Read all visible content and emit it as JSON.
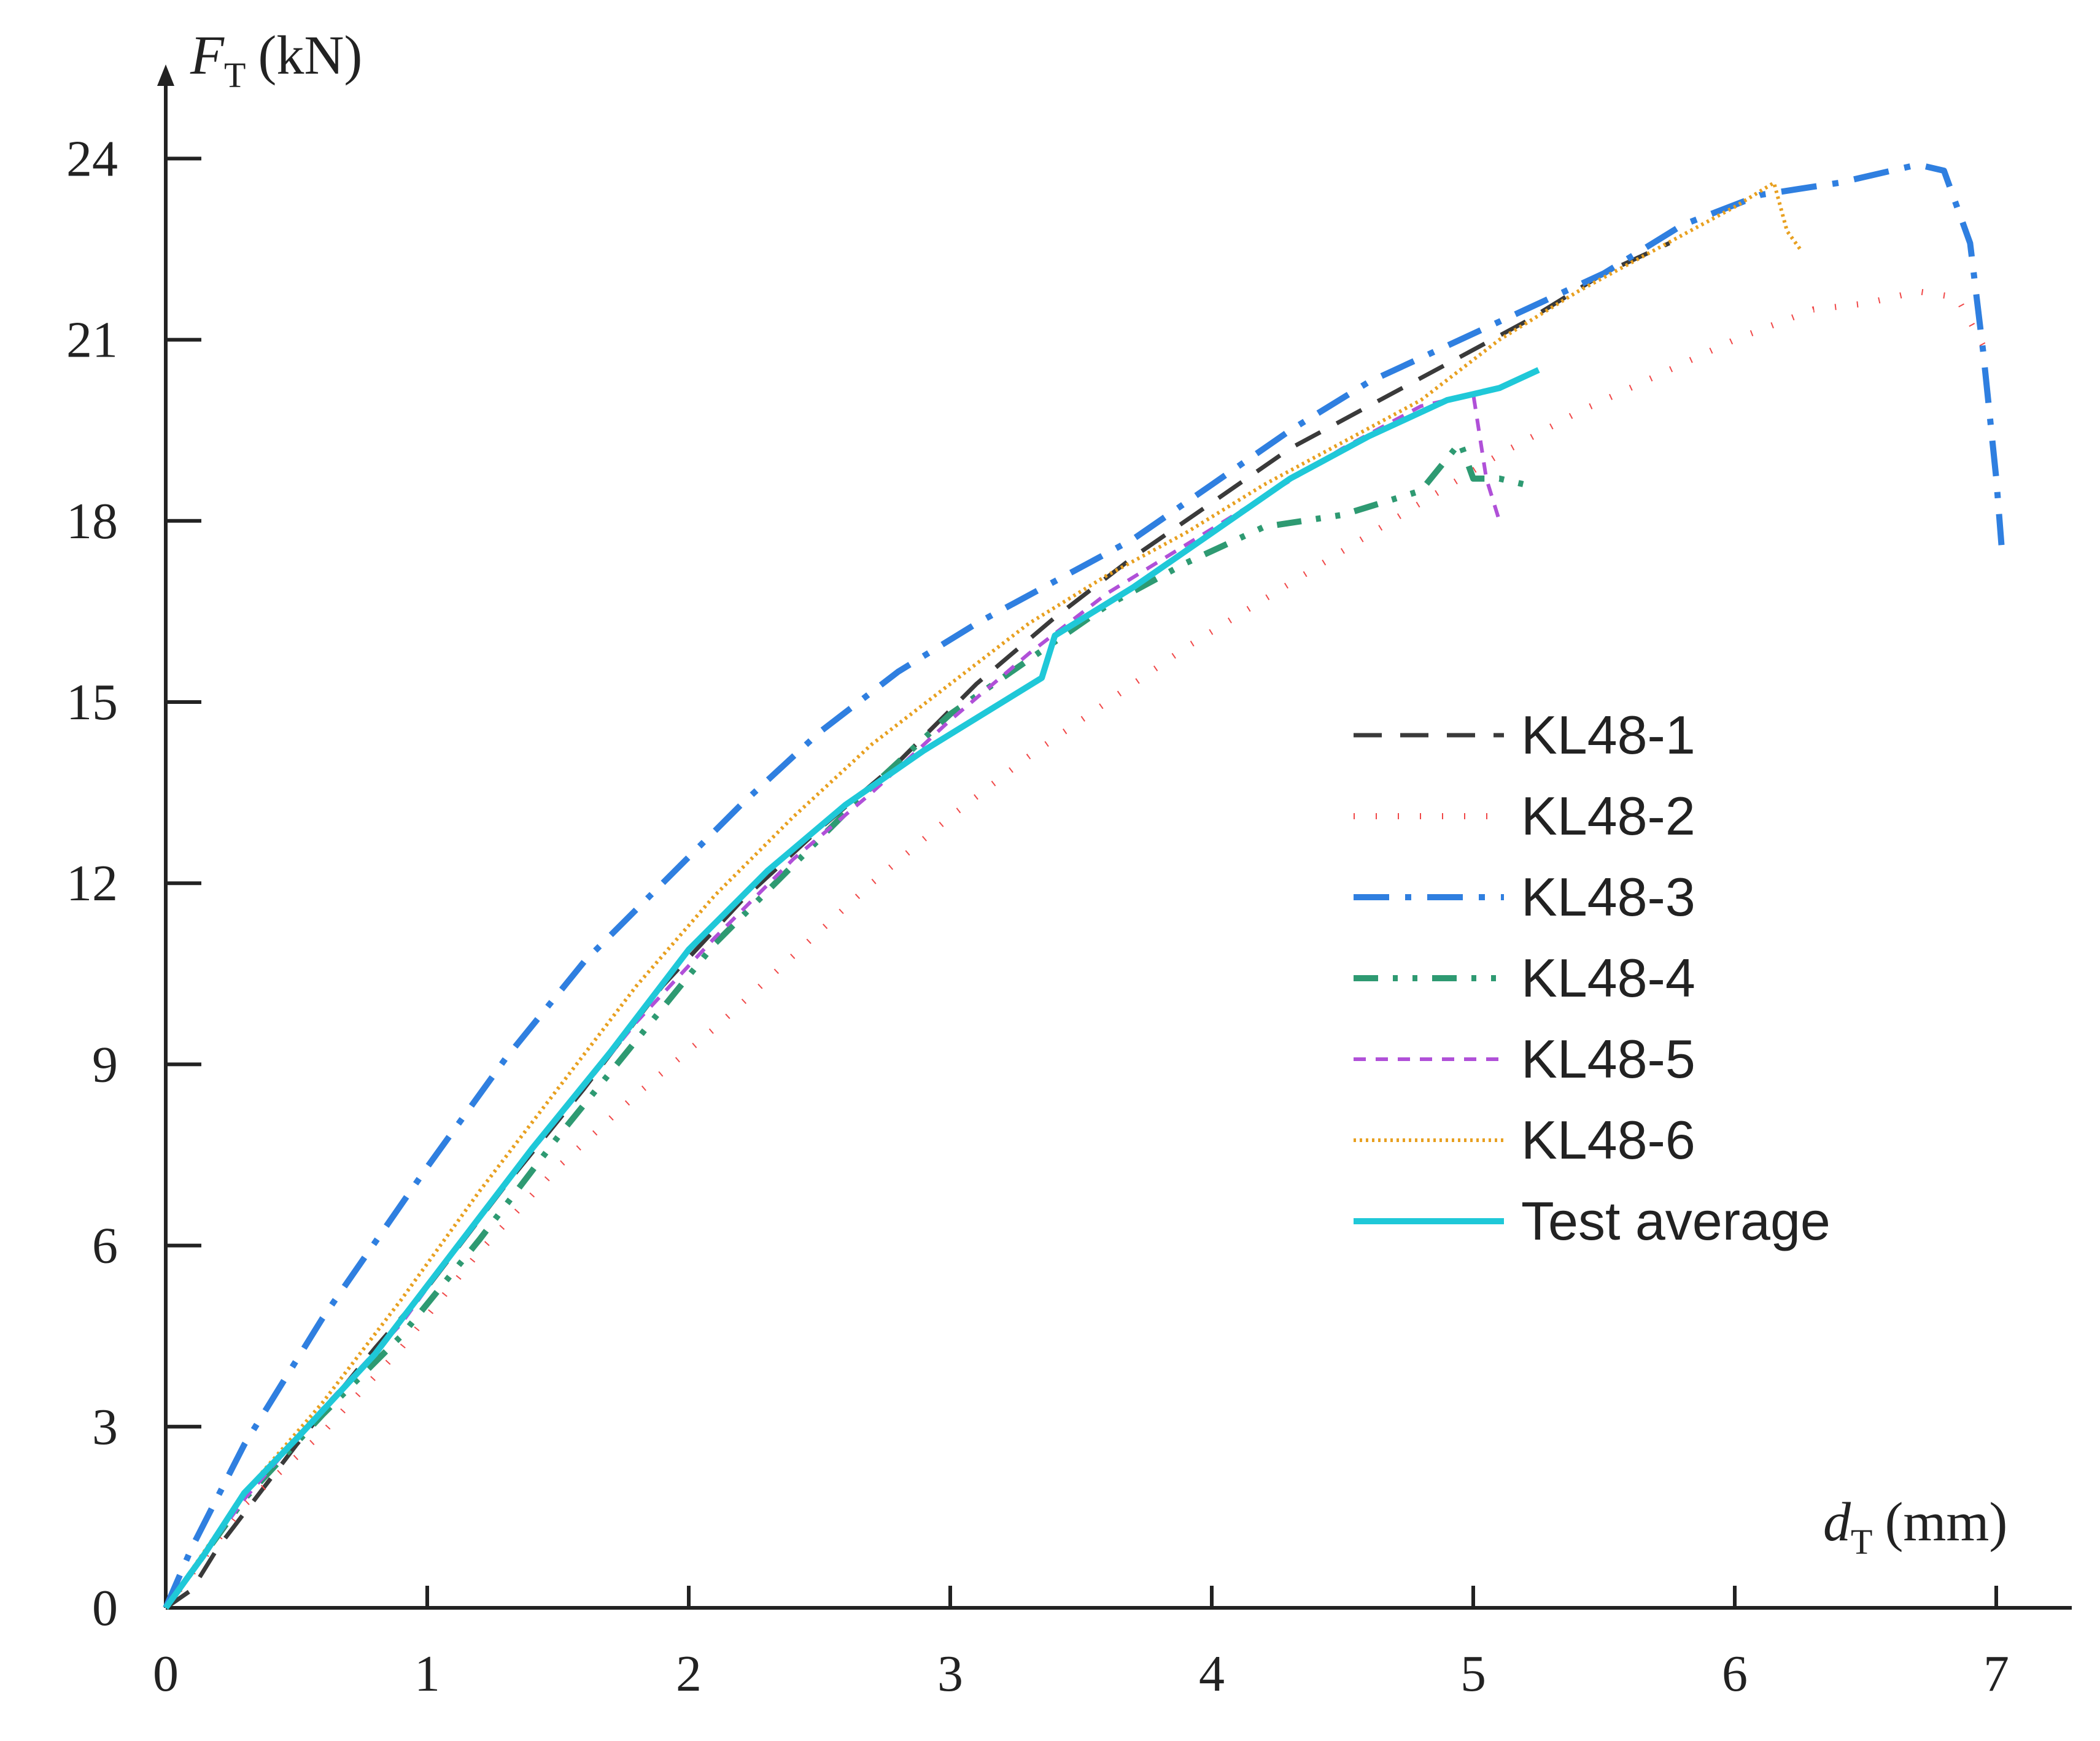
{
  "chart_data": {
    "type": "line",
    "xlabel": {
      "symbol": "d",
      "subscript": "T",
      "unit": "(mm)"
    },
    "ylabel": {
      "symbol": "F",
      "subscript": "T",
      "unit": "(kN)"
    },
    "xlim": [
      0,
      7.3
    ],
    "ylim": [
      0,
      25.5
    ],
    "xticks": [
      0,
      1,
      2,
      3,
      4,
      5,
      6,
      7
    ],
    "yticks": [
      0,
      3,
      6,
      9,
      12,
      15,
      18,
      21,
      24
    ],
    "legend_position": "right",
    "series": [
      {
        "name": "KL48-1",
        "color": "#3a3a3a",
        "style": "dash",
        "x": [
          0,
          0.1,
          0.2,
          0.5,
          0.8,
          1.0,
          1.3,
          1.6,
          1.9,
          2.2,
          2.5,
          2.8,
          3.1,
          3.4,
          3.7,
          4.0,
          4.3,
          4.6,
          4.9,
          5.2,
          5.5,
          5.75
        ],
        "y": [
          0,
          0.3,
          1.0,
          2.7,
          4.3,
          5.3,
          7.0,
          8.6,
          10.3,
          11.7,
          12.9,
          14.0,
          15.3,
          16.4,
          17.4,
          18.3,
          19.2,
          19.9,
          20.6,
          21.3,
          22.1,
          22.6
        ]
      },
      {
        "name": "KL48-2",
        "color": "#f04848",
        "style": "dot",
        "x": [
          0,
          0.3,
          0.6,
          0.9,
          1.2,
          1.5,
          1.8,
          2.1,
          2.4,
          2.7,
          3.0,
          3.3,
          3.6,
          3.9,
          4.2,
          4.5,
          4.8,
          5.1,
          5.4,
          5.7,
          6.0,
          6.3,
          6.5,
          6.7,
          6.85,
          6.95
        ],
        "y": [
          0,
          1.7,
          2.9,
          4.3,
          5.9,
          7.3,
          8.5,
          9.6,
          10.8,
          12.0,
          13.1,
          14.1,
          15.0,
          15.9,
          16.7,
          17.5,
          18.3,
          19.1,
          19.8,
          20.4,
          21.0,
          21.5,
          21.6,
          21.8,
          21.7,
          20.9
        ]
      },
      {
        "name": "KL48-3",
        "color": "#2f7fe0",
        "style": "dashdot",
        "x": [
          0,
          0.1,
          0.3,
          0.6,
          1.0,
          1.3,
          1.6,
          1.9,
          2.2,
          2.5,
          2.8,
          3.1,
          3.4,
          3.7,
          4.0,
          4.3,
          4.6,
          4.9,
          5.2,
          5.5,
          5.8,
          6.1,
          6.4,
          6.7,
          6.8,
          6.9,
          6.95,
          7.0,
          7.02
        ],
        "y": [
          0,
          1.0,
          2.7,
          4.8,
          7.3,
          9.1,
          10.7,
          12.0,
          13.3,
          14.5,
          15.5,
          16.3,
          17.0,
          17.7,
          18.6,
          19.5,
          20.3,
          20.9,
          21.5,
          22.1,
          22.9,
          23.4,
          23.6,
          23.9,
          23.8,
          22.6,
          20.8,
          18.7,
          17.6
        ]
      },
      {
        "name": "KL48-4",
        "color": "#2e9a72",
        "style": "dashdotdot",
        "x": [
          0,
          0.3,
          0.6,
          0.9,
          1.2,
          1.5,
          1.8,
          2.1,
          2.4,
          2.7,
          3.0,
          3.3,
          3.6,
          3.9,
          4.2,
          4.5,
          4.8,
          4.95,
          5.0,
          5.1,
          5.2
        ],
        "y": [
          0,
          1.8,
          3.2,
          4.5,
          6.1,
          7.8,
          9.4,
          11.0,
          12.3,
          13.6,
          14.8,
          15.7,
          16.6,
          17.3,
          17.9,
          18.1,
          18.5,
          19.3,
          18.7,
          18.7,
          18.6
        ]
      },
      {
        "name": "KL48-5",
        "color": "#b050d8",
        "style": "shortdash",
        "x": [
          0,
          0.3,
          0.6,
          0.9,
          1.2,
          1.5,
          1.8,
          2.1,
          2.4,
          2.7,
          3.0,
          3.3,
          3.6,
          3.9,
          4.2,
          4.5,
          4.8,
          5.0,
          5.05,
          5.1
        ],
        "y": [
          0,
          1.8,
          3.3,
          4.7,
          6.5,
          8.1,
          9.7,
          11.1,
          12.4,
          13.5,
          14.7,
          15.8,
          16.8,
          17.6,
          18.4,
          19.2,
          19.9,
          20.1,
          18.7,
          18.0
        ]
      },
      {
        "name": "KL48-6",
        "color": "#e8a020",
        "style": "dense",
        "x": [
          0,
          0.3,
          0.6,
          0.9,
          1.2,
          1.5,
          1.8,
          2.1,
          2.4,
          2.7,
          3.0,
          3.3,
          3.6,
          3.9,
          4.2,
          4.5,
          4.8,
          5.1,
          5.4,
          5.7,
          6.0,
          6.15,
          6.2,
          6.25
        ],
        "y": [
          0,
          1.9,
          3.4,
          5.1,
          6.9,
          8.6,
          10.3,
          11.8,
          13.1,
          14.3,
          15.3,
          16.3,
          17.1,
          17.8,
          18.6,
          19.3,
          20.0,
          21.0,
          21.8,
          22.5,
          23.2,
          23.6,
          22.8,
          22.5
        ]
      },
      {
        "name": "Test average",
        "color": "#1fc8d8",
        "style": "solid",
        "x": [
          0,
          0.15,
          0.3,
          0.5,
          0.8,
          1.1,
          1.4,
          1.7,
          2.0,
          2.3,
          2.6,
          2.9,
          3.2,
          3.35,
          3.4,
          3.7,
          4.0,
          4.3,
          4.6,
          4.9,
          5.0,
          5.1,
          5.25
        ],
        "y": [
          0,
          0.9,
          1.9,
          2.8,
          4.2,
          5.9,
          7.6,
          9.2,
          10.9,
          12.2,
          13.3,
          14.2,
          15.0,
          15.4,
          16.1,
          16.9,
          17.8,
          18.7,
          19.4,
          20.0,
          20.1,
          20.2,
          20.5
        ]
      }
    ]
  }
}
